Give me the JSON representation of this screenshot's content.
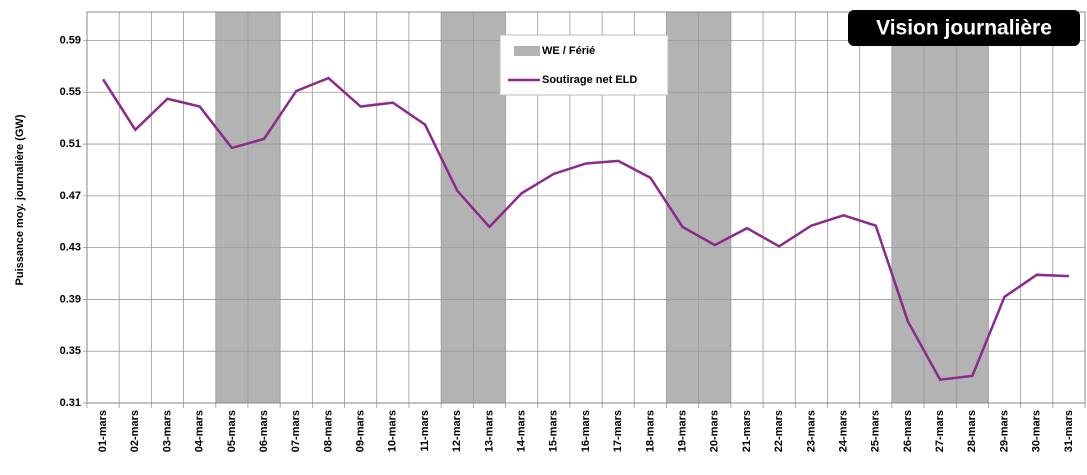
{
  "chart_data": {
    "type": "line",
    "y_label": "Puissance moy. journalière (GW)",
    "badge": "Vision journalière",
    "categories": [
      "01-mars",
      "02-mars",
      "03-mars",
      "04-mars",
      "05-mars",
      "06-mars",
      "07-mars",
      "08-mars",
      "09-mars",
      "10-mars",
      "11-mars",
      "12-mars",
      "13-mars",
      "14-mars",
      "15-mars",
      "16-mars",
      "17-mars",
      "18-mars",
      "19-mars",
      "20-mars",
      "21-mars",
      "22-mars",
      "23-mars",
      "24-mars",
      "25-mars",
      "26-mars",
      "27-mars",
      "28-mars",
      "29-mars",
      "30-mars",
      "31-mars"
    ],
    "series": [
      {
        "name": "Soutirage net ELD",
        "color": "#8b2a8b",
        "values": [
          0.56,
          0.521,
          0.545,
          0.539,
          0.507,
          0.514,
          0.551,
          0.561,
          0.539,
          0.542,
          0.525,
          0.474,
          0.446,
          0.472,
          0.487,
          0.495,
          0.497,
          0.484,
          0.446,
          0.432,
          0.445,
          0.431,
          0.447,
          0.455,
          0.447,
          0.373,
          0.328,
          0.331,
          0.392,
          0.409,
          0.408
        ]
      }
    ],
    "highlight": {
      "name": "WE / Férié",
      "color": "#b3b3b3",
      "categories": [
        "05-mars",
        "06-mars",
        "12-mars",
        "13-mars",
        "19-mars",
        "20-mars",
        "26-mars",
        "27-mars",
        "28-mars"
      ]
    },
    "ylim": [
      0.31,
      0.612
    ],
    "yticks": [
      0.31,
      0.35,
      0.39,
      0.43,
      0.47,
      0.51,
      0.55,
      0.59
    ],
    "grid": true
  }
}
